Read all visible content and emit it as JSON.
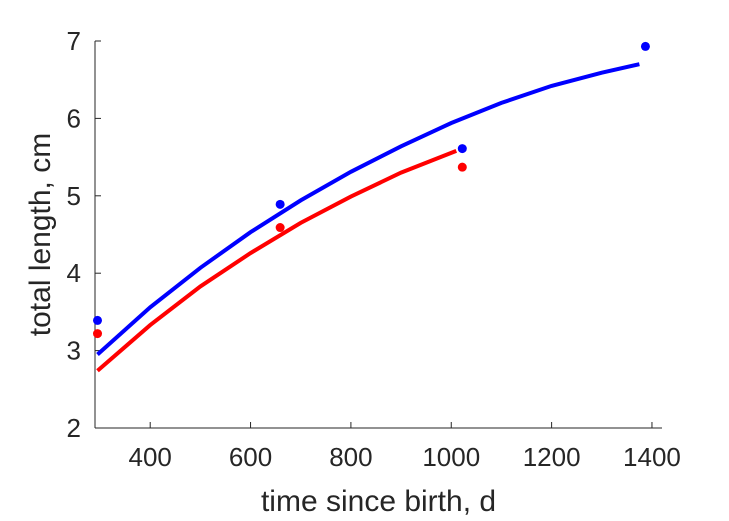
{
  "chart_data": {
    "type": "scatter",
    "title": "",
    "xlabel": "time since birth, d",
    "ylabel": "total length, cm",
    "xlim": [
      290,
      1420
    ],
    "ylim": [
      2,
      7
    ],
    "xticks": [
      400,
      600,
      800,
      1000,
      1200,
      1400
    ],
    "yticks": [
      2,
      3,
      4,
      5,
      6,
      7
    ],
    "grid": false,
    "legend": "none",
    "series": [
      {
        "color": "#0000ff",
        "points": {
          "x": [
            295,
            659,
            1022,
            1387
          ],
          "y": [
            3.39,
            4.89,
            5.61,
            6.93
          ]
        },
        "fit": {
          "x": [
            295,
            400,
            500,
            600,
            700,
            800,
            900,
            1000,
            1100,
            1200,
            1300,
            1375
          ],
          "y": [
            2.95,
            3.56,
            4.07,
            4.53,
            4.94,
            5.31,
            5.64,
            5.94,
            6.2,
            6.42,
            6.59,
            6.7
          ]
        }
      },
      {
        "color": "#ff0000",
        "points": {
          "x": [
            295,
            659,
            1022
          ],
          "y": [
            3.22,
            4.59,
            5.37
          ]
        },
        "fit": {
          "x": [
            295,
            400,
            500,
            600,
            700,
            800,
            900,
            1010
          ],
          "y": [
            2.74,
            3.33,
            3.83,
            4.26,
            4.65,
            4.99,
            5.3,
            5.58
          ]
        }
      }
    ]
  }
}
